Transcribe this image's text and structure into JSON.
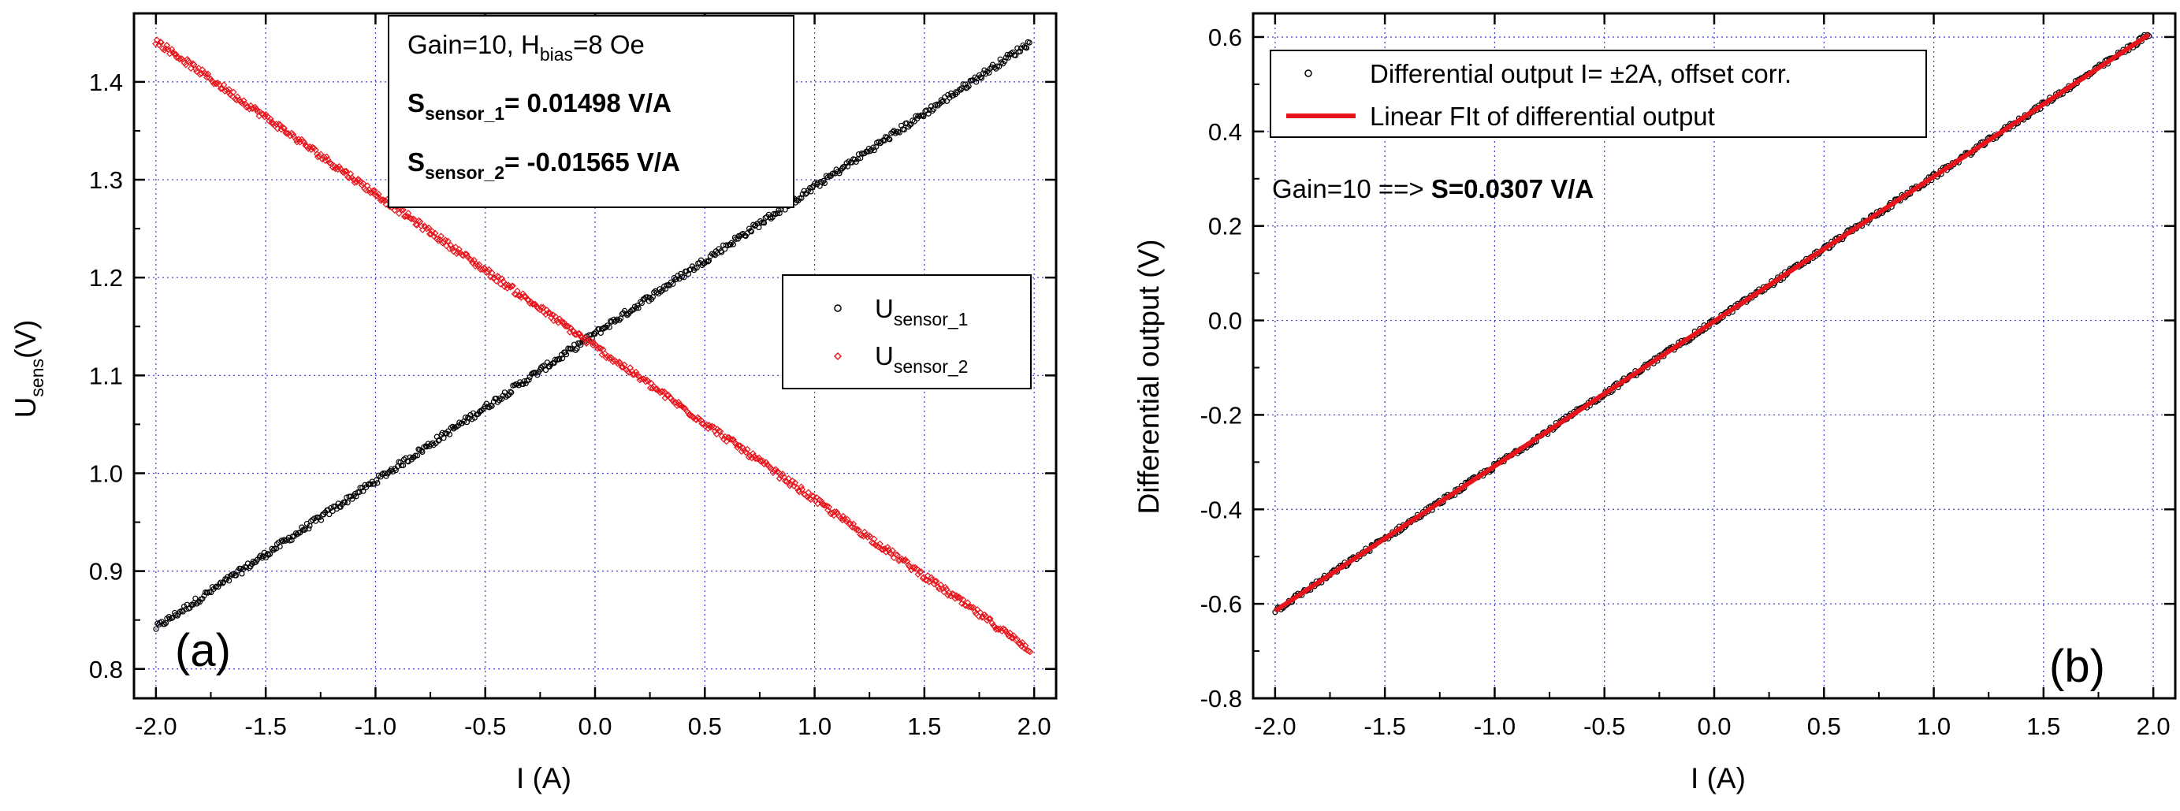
{
  "chart_data": [
    {
      "type": "scatter",
      "panel_label": "(a)",
      "xlabel": "I (A)",
      "ylabel": {
        "main": "U",
        "sub": "sens",
        "unit": "(V)"
      },
      "xlim": [
        -2.1,
        2.1
      ],
      "ylim": [
        0.77,
        1.47
      ],
      "xticks": [
        -2.0,
        -1.5,
        -1.0,
        -0.5,
        0.0,
        0.5,
        1.0,
        1.5,
        2.0
      ],
      "xtick_labels": [
        "-2.0",
        "-1.5",
        "-1.0",
        "-0.5",
        "0.0",
        "0.5",
        "1.0",
        "1.5",
        "2.0"
      ],
      "yticks": [
        0.8,
        0.9,
        1.0,
        1.1,
        1.2,
        1.3,
        1.4
      ],
      "ytick_labels": [
        "0.8",
        "0.9",
        "1.0",
        "1.1",
        "1.2",
        "1.3",
        "1.4"
      ],
      "grid": true,
      "series": [
        {
          "name": "U_sensor_1",
          "label_main": "U",
          "label_sub": "sensor_1",
          "color": "#000000",
          "marker": "open-circle",
          "x_range": [
            -2.0,
            1.98
          ],
          "y_start": 0.842,
          "y_end": 1.44
        },
        {
          "name": "U_sensor_2",
          "label_main": "U",
          "label_sub": "sensor_2",
          "color": "#e8141c",
          "marker": "open-diamond",
          "x_range": [
            -2.0,
            1.98
          ],
          "y_start": 1.442,
          "y_end": 0.82
        }
      ],
      "legend_position": "center-right",
      "annotation": {
        "gain_text": "Gain=10, H",
        "hbias_sub": "bias",
        "hbias_value": "=8 Oe",
        "s1_main": "S",
        "s1_sub": "sensor_1",
        "s1_value": "=  0.01498 V/A",
        "s2_main": "S",
        "s2_sub": "sensor_2",
        "s2_value": "= -0.01565 V/A"
      }
    },
    {
      "type": "scatter",
      "panel_label": "(b)",
      "xlabel": "I (A)",
      "ylabel": "Differential output (V)",
      "xlim": [
        -2.1,
        2.1
      ],
      "ylim": [
        -0.8,
        0.65
      ],
      "xticks": [
        -2.0,
        -1.5,
        -1.0,
        -0.5,
        0.0,
        0.5,
        1.0,
        1.5,
        2.0
      ],
      "xtick_labels": [
        "-2.0",
        "-1.5",
        "-1.0",
        "-0.5",
        "0.0",
        "0.5",
        "1.0",
        "1.5",
        "2.0"
      ],
      "yticks": [
        -0.8,
        -0.6,
        -0.4,
        -0.2,
        0.0,
        0.2,
        0.4,
        0.6
      ],
      "ytick_labels": [
        "-0.8",
        "-0.6",
        "-0.4",
        "-0.2",
        "0.0",
        "0.2",
        "0.4",
        "0.6"
      ],
      "grid": true,
      "series": [
        {
          "name": "Differential output I= ±2A, offset corr.",
          "color": "#000000",
          "marker": "open-circle",
          "x_range": [
            -2.0,
            1.98
          ],
          "y_start": -0.615,
          "y_end": 0.605
        },
        {
          "name": "Linear FIt of differential output",
          "color": "#e8141c",
          "marker": "line",
          "x_range": [
            -2.0,
            1.98
          ],
          "y_start": -0.615,
          "y_end": 0.605
        }
      ],
      "legend_position": "top-left",
      "annotation": {
        "gain_text": "Gain=10 ==> ",
        "s_value": "S=0.0307 V/A"
      }
    }
  ]
}
